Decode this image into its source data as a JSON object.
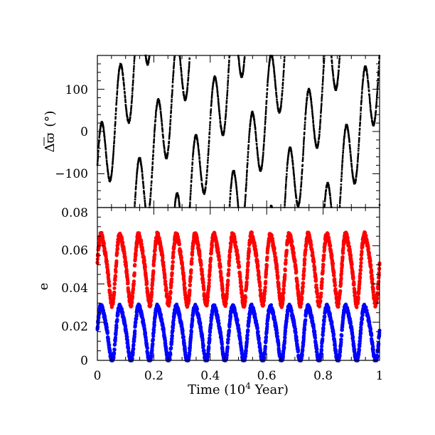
{
  "chart_data": [
    {
      "type": "scatter",
      "panel": "top",
      "ylabel": "Δϖ (°)",
      "ylabel_parts": {
        "delta": "Δ",
        "varpi": "ϖ",
        "unit": "(°)"
      },
      "xlim": [
        0,
        1
      ],
      "ylim": [
        -180,
        180
      ],
      "yticks": [
        -100,
        0,
        100
      ],
      "ytick_labels": [
        "−100",
        "0",
        "100"
      ],
      "grid": false,
      "series": [
        {
          "color": "#000000",
          "marker": "dot",
          "description_values": {
            "circulation_period_1e4yr": 0.174,
            "fast_oscillation_period_1e4yr": 0.0667,
            "fast_oscillation_amplitude_deg": 100
          }
        }
      ]
    },
    {
      "type": "scatter",
      "panel": "bottom",
      "xlabel": "Time (10",
      "xlabel_sup": "4",
      "xlabel_tail": " Year)",
      "ylabel": "e",
      "xlim": [
        0,
        1
      ],
      "ylim": [
        0,
        0.08
      ],
      "xticks": [
        0,
        0.2,
        0.4,
        0.6,
        0.8,
        1
      ],
      "xtick_labels": [
        "0",
        "0.2",
        "0.4",
        "0.6",
        "0.8",
        "1"
      ],
      "yticks": [
        0,
        0.02,
        0.04,
        0.06,
        0.08
      ],
      "ytick_labels": [
        "0",
        "0.02",
        "0.04",
        "0.06",
        "0.08"
      ],
      "grid": false,
      "series": [
        {
          "color": "#ff0000",
          "period_1e4yr": 0.0667,
          "min": 0.03,
          "max": 0.068,
          "mean": 0.053
        },
        {
          "color": "#0000ff",
          "period_1e4yr": 0.0667,
          "min": 0.0,
          "max": 0.03,
          "mean": 0.015
        }
      ]
    }
  ]
}
